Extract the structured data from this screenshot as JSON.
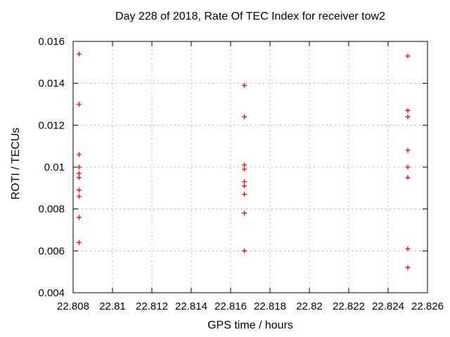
{
  "window": {
    "background": "#ffffff"
  },
  "chart_data": {
    "type": "scatter",
    "title": "Day 228 of 2018, Rate Of TEC Index for receiver tow2",
    "xlabel": "GPS time / hours",
    "ylabel": "ROTI / TECUs",
    "xlim": [
      22.808,
      22.826
    ],
    "ylim": [
      0.004,
      0.016
    ],
    "xticks": [
      22.808,
      22.81,
      22.812,
      22.814,
      22.816,
      22.818,
      22.82,
      22.822,
      22.824,
      22.826
    ],
    "xtick_labels": [
      "22.808",
      "22.81",
      "22.812",
      "22.814",
      "22.816",
      "22.818",
      "22.82",
      "22.822",
      "22.824",
      "22.826"
    ],
    "yticks": [
      0.004,
      0.006,
      0.008,
      0.01,
      0.012,
      0.014,
      0.016
    ],
    "ytick_labels": [
      "0.004",
      "0.006",
      "0.008",
      "0.01",
      "0.012",
      "0.014",
      "0.016"
    ],
    "grid": true,
    "legend_position": "none",
    "marker": "plus",
    "marker_color": "#ff0000",
    "grid_color": "#b0b0b0",
    "border_color": "#000000",
    "series": [
      {
        "name": "ROTI",
        "points": [
          [
            22.8083,
            0.0154
          ],
          [
            22.8083,
            0.013
          ],
          [
            22.8083,
            0.0106
          ],
          [
            22.8083,
            0.01
          ],
          [
            22.8083,
            0.0097
          ],
          [
            22.8083,
            0.0095
          ],
          [
            22.8083,
            0.0089
          ],
          [
            22.8083,
            0.0086
          ],
          [
            22.8083,
            0.0076
          ],
          [
            22.8083,
            0.0064
          ],
          [
            22.8167,
            0.0139
          ],
          [
            22.8167,
            0.0124
          ],
          [
            22.8167,
            0.0101
          ],
          [
            22.8167,
            0.0099
          ],
          [
            22.8167,
            0.0093
          ],
          [
            22.8167,
            0.0091
          ],
          [
            22.8167,
            0.0087
          ],
          [
            22.8167,
            0.0078
          ],
          [
            22.8167,
            0.006
          ],
          [
            22.825,
            0.0153
          ],
          [
            22.825,
            0.0127
          ],
          [
            22.825,
            0.0124
          ],
          [
            22.825,
            0.0108
          ],
          [
            22.825,
            0.01
          ],
          [
            22.825,
            0.0095
          ],
          [
            22.825,
            0.0061
          ],
          [
            22.825,
            0.0052
          ]
        ]
      }
    ]
  }
}
